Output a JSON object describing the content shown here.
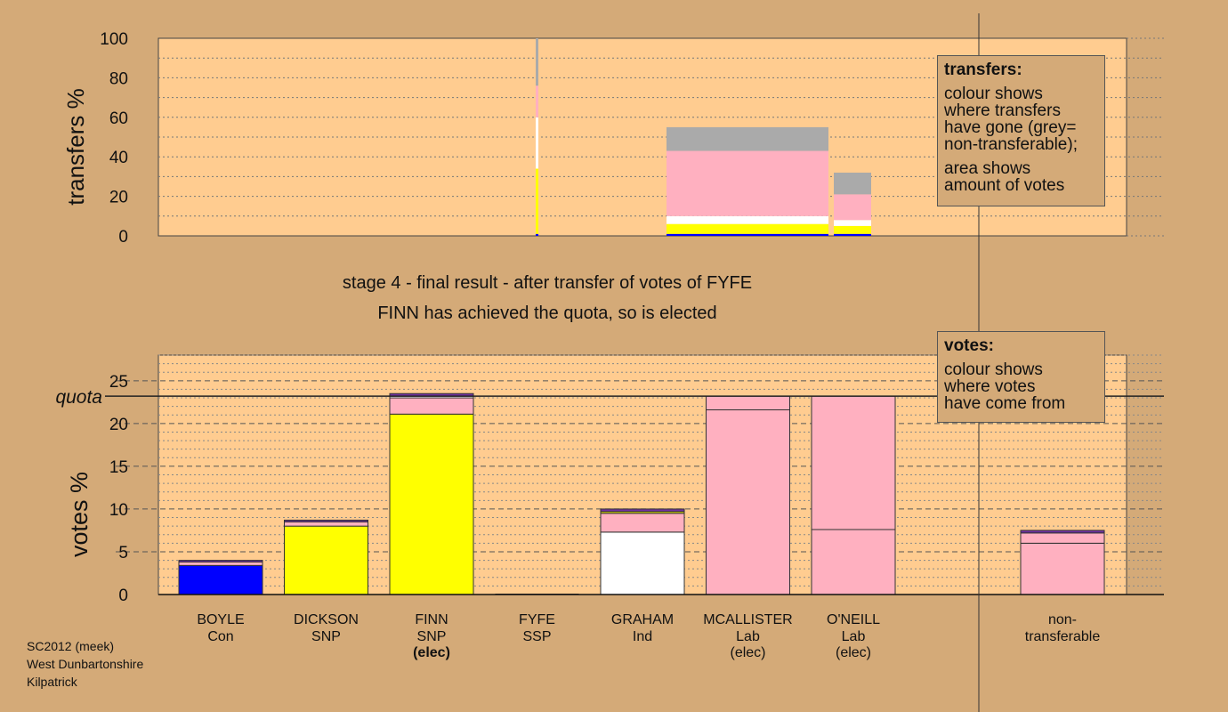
{
  "colors": {
    "background": "#d4aa78",
    "plot_area": "#ffcc90",
    "Con": "#0000ff",
    "SNP": "#ffff00",
    "Ind": "#ffffff",
    "Lab": "#ffb0c0",
    "non_transferable": "#aaaaaa",
    "other": "#7030a0"
  },
  "stage": {
    "line1": "stage 4 - final result - after transfer of votes of FYFE",
    "line2": "FINN has achieved the quota, so is elected"
  },
  "transfers_legend": {
    "title": "transfers:",
    "line1": "colour shows\nwhere transfers\nhave gone (grey=\nnon-transferable);",
    "line2": "area shows\namount of votes"
  },
  "votes_legend": {
    "title": "votes:",
    "line1": "colour shows\nwhere votes\nhave come from"
  },
  "footer": {
    "line1": "SC2012 (meek)",
    "line2": "West Dunbartonshire",
    "line3": "Kilpatrick"
  },
  "chart_data": [
    {
      "type": "bar",
      "name": "transfers",
      "ylabel": "transfers %",
      "ylim": [
        0,
        100
      ],
      "yticks": [
        0,
        20,
        40,
        60,
        80,
        100
      ],
      "grid": "dotted",
      "bars": [
        {
          "candidate": "FYFE",
          "width_share": 0.1,
          "segments": [
            {
              "party": "Con",
              "value": 1
            },
            {
              "party": "SNP",
              "value": 33
            },
            {
              "party": "Ind",
              "value": 26
            },
            {
              "party": "Lab",
              "value": 16
            },
            {
              "party": "non_transferable",
              "value": 24
            }
          ]
        },
        {
          "candidate": "MCALLISTER",
          "width_share": 1.0,
          "segments": [
            {
              "party": "Con",
              "value": 1
            },
            {
              "party": "SNP",
              "value": 5
            },
            {
              "party": "Ind",
              "value": 4
            },
            {
              "party": "Lab",
              "value": 33
            },
            {
              "party": "non_transferable",
              "value": 12
            }
          ]
        },
        {
          "candidate": "O'NEILL",
          "width_share": 0.24,
          "segments": [
            {
              "party": "Con",
              "value": 1
            },
            {
              "party": "SNP",
              "value": 4
            },
            {
              "party": "Ind",
              "value": 3
            },
            {
              "party": "Lab",
              "value": 13
            },
            {
              "party": "non_transferable",
              "value": 11
            }
          ]
        }
      ]
    },
    {
      "type": "bar",
      "name": "votes",
      "ylabel": "votes %",
      "ylim": [
        0,
        28
      ],
      "yticks": [
        0,
        5,
        10,
        15,
        20,
        25
      ],
      "quota": 23.2,
      "quota_label": "quota",
      "grid": "dashed",
      "candidates": [
        {
          "name": "BOYLE",
          "party": "Con",
          "status": "",
          "segments": [
            {
              "party": "Con",
              "value": 3.4
            },
            {
              "party": "Lab",
              "value": 0.4
            },
            {
              "party": "other",
              "value": 0.2
            }
          ]
        },
        {
          "name": "DICKSON",
          "party": "SNP",
          "status": "",
          "segments": [
            {
              "party": "SNP",
              "value": 8.0
            },
            {
              "party": "Lab",
              "value": 0.5
            },
            {
              "party": "other",
              "value": 0.2
            }
          ]
        },
        {
          "name": "FINN",
          "party": "SNP",
          "status": "(elec)",
          "segments": [
            {
              "party": "SNP",
              "value": 21.1
            },
            {
              "party": "Lab",
              "value": 1.9
            },
            {
              "party": "Ind",
              "value": 0.2
            },
            {
              "party": "other",
              "value": 0.3
            }
          ]
        },
        {
          "name": "FYFE",
          "party": "SSP",
          "status": "",
          "segments": []
        },
        {
          "name": "GRAHAM",
          "party": "Ind",
          "status": "",
          "segments": [
            {
              "party": "Ind",
              "value": 7.3
            },
            {
              "party": "Lab",
              "value": 2.2
            },
            {
              "party": "SNP",
              "value": 0.2
            },
            {
              "party": "other",
              "value": 0.3
            }
          ]
        },
        {
          "name": "MCALLISTER",
          "party": "Lab",
          "status": "(elec)",
          "segments": [
            {
              "party": "Lab",
              "value": 21.6
            },
            {
              "party": "Lab",
              "value": 1.6
            }
          ]
        },
        {
          "name": "O'NEILL",
          "party": "Lab",
          "status": "(elec)",
          "segments": [
            {
              "party": "Lab",
              "value": 7.6
            },
            {
              "party": "Lab",
              "value": 15.6
            }
          ]
        },
        {
          "name": "non-",
          "party": "transferable",
          "status": "",
          "segments": [
            {
              "party": "Lab",
              "value": 6.0
            },
            {
              "party": "Lab",
              "value": 1.2
            },
            {
              "party": "other",
              "value": 0.3
            }
          ]
        }
      ]
    }
  ]
}
